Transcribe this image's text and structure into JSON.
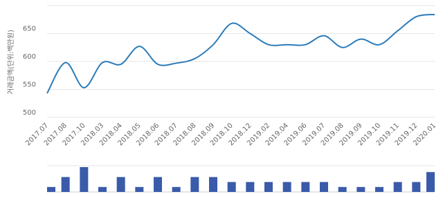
{
  "chart_data": {
    "type": "line",
    "y_label": "거래금액(단위:백만원)",
    "categories": [
      "2017.07",
      "2017.08",
      "2017.10",
      "2018.03",
      "2018.04",
      "2018.05",
      "2018.06",
      "2018.07",
      "2018.08",
      "2018.09",
      "2018.10",
      "2018.12",
      "2019.02",
      "2019.04",
      "2019.06",
      "2019.07",
      "2019.08",
      "2019.09",
      "2019.10",
      "2019.11",
      "2019.12",
      "2020.01"
    ],
    "values": [
      543,
      598,
      553,
      598,
      595,
      627,
      595,
      597,
      605,
      630,
      668,
      650,
      630,
      630,
      630,
      646,
      625,
      640,
      630,
      655,
      680,
      684
    ],
    "color": "#2b7bb9",
    "ylim": [
      500,
      700
    ],
    "yticks": [
      500,
      550,
      600,
      650
    ],
    "grid": true,
    "bar_values": [
      1,
      3,
      5,
      1,
      3,
      1,
      3,
      1,
      3,
      3,
      2,
      2,
      2,
      2,
      2,
      2,
      1,
      1,
      1,
      2,
      2,
      4
    ],
    "bar_color": "#3a5ba9",
    "bar_ylim": [
      0,
      5
    ]
  }
}
